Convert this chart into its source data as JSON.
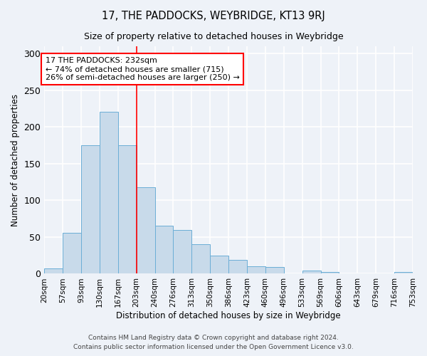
{
  "title": "17, THE PADDOCKS, WEYBRIDGE, KT13 9RJ",
  "subtitle": "Size of property relative to detached houses in Weybridge",
  "xlabel": "Distribution of detached houses by size in Weybridge",
  "ylabel": "Number of detached properties",
  "footer_line1": "Contains HM Land Registry data © Crown copyright and database right 2024.",
  "footer_line2": "Contains public sector information licensed under the Open Government Licence v3.0.",
  "bin_labels": [
    "20sqm",
    "57sqm",
    "93sqm",
    "130sqm",
    "167sqm",
    "203sqm",
    "240sqm",
    "276sqm",
    "313sqm",
    "350sqm",
    "386sqm",
    "423sqm",
    "460sqm",
    "496sqm",
    "533sqm",
    "569sqm",
    "606sqm",
    "643sqm",
    "679sqm",
    "716sqm",
    "753sqm"
  ],
  "bar_heights": [
    7,
    56,
    175,
    221,
    175,
    118,
    65,
    60,
    40,
    25,
    19,
    10,
    9,
    0,
    4,
    2,
    0,
    0,
    0,
    2
  ],
  "bar_color": "#c8daea",
  "bar_edge_color": "#6baed6",
  "vline_x": 5,
  "vline_color": "red",
  "annotation_line1": "17 THE PADDOCKS: 232sqm",
  "annotation_line2": "← 74% of detached houses are smaller (715)",
  "annotation_line3": "26% of semi-detached houses are larger (250) →",
  "annotation_box_color": "white",
  "annotation_box_edge_color": "red",
  "ylim": [
    0,
    310
  ],
  "yticks": [
    0,
    50,
    100,
    150,
    200,
    250,
    300
  ],
  "background_color": "#eef2f8",
  "grid_color": "white",
  "n_bars": 20
}
